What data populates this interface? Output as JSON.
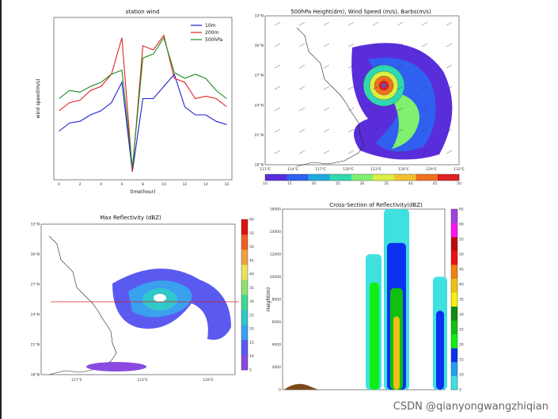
{
  "watermark": "CSDN @qianyongwangzhiqian",
  "chart_data": [
    {
      "type": "line",
      "title": "station wind",
      "xlabel": "time(hour)",
      "ylabel": "wind speed(m/s)",
      "x": [
        0,
        1,
        2,
        3,
        4,
        5,
        6,
        7,
        8,
        9,
        10,
        11,
        12,
        13,
        14,
        15,
        16
      ],
      "series": [
        {
          "name": "10m",
          "color": "#1f1fd6",
          "values": [
            6,
            7,
            7.2,
            8,
            8.5,
            9.5,
            12,
            1,
            10,
            10,
            11.5,
            13,
            9,
            8,
            8,
            7.2,
            6.8
          ]
        },
        {
          "name": "200m",
          "color": "#e02020",
          "values": [
            8.5,
            9.5,
            9.8,
            11,
            11.5,
            13,
            17.5,
            1,
            16.5,
            16,
            17.8,
            12.5,
            12,
            10,
            10.3,
            10,
            9
          ]
        },
        {
          "name": "500hPa",
          "color": "#1a8a1a",
          "values": [
            10,
            11,
            10.8,
            11.5,
            12,
            13,
            13.5,
            1.5,
            15,
            15.5,
            17.5,
            13.2,
            12.5,
            13,
            12.5,
            11,
            10
          ]
        }
      ],
      "legend": "top-right",
      "ylim": [
        0,
        20
      ]
    },
    {
      "type": "heatmap",
      "title": "500hPa Height(dm), Wind Speed (m/s), Barbs(m/s)",
      "x_ticks": [
        "111°E",
        "114°E",
        "117°E",
        "120°E",
        "123°E",
        "126°E",
        "129°E",
        "132°E"
      ],
      "y_ticks": [
        "18°N",
        "21°N",
        "24°N",
        "27°N",
        "30°N",
        "33°N"
      ],
      "colorbar": {
        "colors": [
          "#5a2ddb",
          "#2f60f0",
          "#20a8e0",
          "#30d8b0",
          "#7ff070",
          "#d8f040",
          "#f5c030",
          "#f07020",
          "#e02020"
        ],
        "ticks": [
          "10",
          "15",
          "20",
          "25",
          "30",
          "35",
          "40",
          "45",
          "50"
        ]
      }
    },
    {
      "type": "heatmap",
      "title": "Max Reflectivity (dBZ)",
      "x_ticks": [
        "117°E",
        "123°E",
        "129°E"
      ],
      "y_ticks": [
        "18°N",
        "21°N",
        "24°N",
        "27°N",
        "30°N",
        "33°N"
      ],
      "colorbar": {
        "colors": [
          "#8a4ae0",
          "#5a5af0",
          "#3aa0f0",
          "#30c8c8",
          "#40d890",
          "#90e070",
          "#e8e060",
          "#f0a040",
          "#f06020",
          "#e01010"
        ],
        "ticks": [
          "5",
          "10",
          "15",
          "20",
          "25",
          "30",
          "35",
          "40",
          "45",
          "50",
          "55",
          "60"
        ]
      }
    },
    {
      "type": "heatmap",
      "title": "Cross-Section of Reflectivity(dBZ)",
      "ylabel": "Height(m)",
      "y_ticks": [
        "0",
        "2000",
        "4000",
        "6000",
        "8000",
        "10000",
        "12000",
        "14000",
        "16000"
      ],
      "ylim": [
        0,
        16000
      ],
      "colorbar": {
        "colors": [
          "#40e0e0",
          "#1ea0f0",
          "#0a30f0",
          "#10f010",
          "#10c010",
          "#108a10",
          "#f8f010",
          "#f0c010",
          "#f08010",
          "#f01010",
          "#c00808",
          "#ff10f0",
          "#a040e0"
        ],
        "ticks": [
          "5",
          "10",
          "15",
          "20",
          "25",
          "30",
          "35",
          "40",
          "45",
          "50",
          "55",
          "60",
          "65"
        ]
      }
    }
  ]
}
